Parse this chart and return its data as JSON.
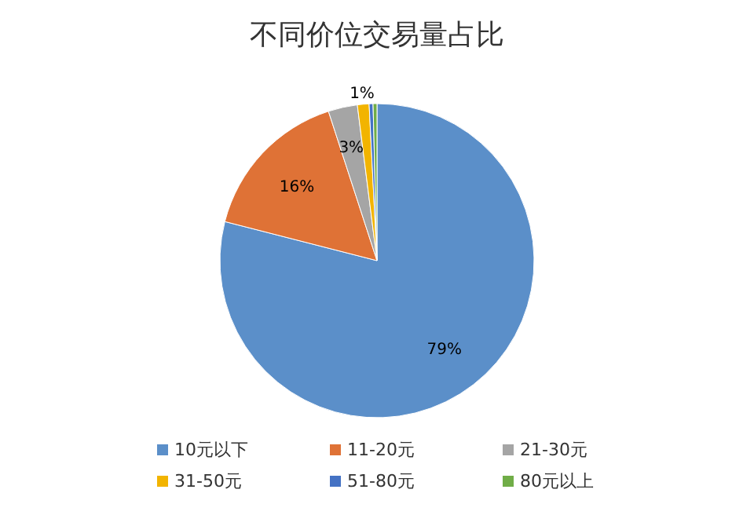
{
  "chart_data": {
    "type": "pie",
    "title": "不同价位交易量占比",
    "categories": [
      "10元以下",
      "11-20元",
      "21-30元",
      "31-50元",
      "51-80元",
      "80元以上"
    ],
    "values": [
      79,
      16,
      3,
      1.2,
      0.4,
      0.4
    ],
    "colors": [
      "#5b8fc9",
      "#df7236",
      "#a5a5a5",
      "#f2b400",
      "#4472c4",
      "#70ad47"
    ],
    "value_labels": [
      "79%",
      "16%",
      "3%",
      "1%",
      null,
      null
    ],
    "legend": "bottom"
  }
}
